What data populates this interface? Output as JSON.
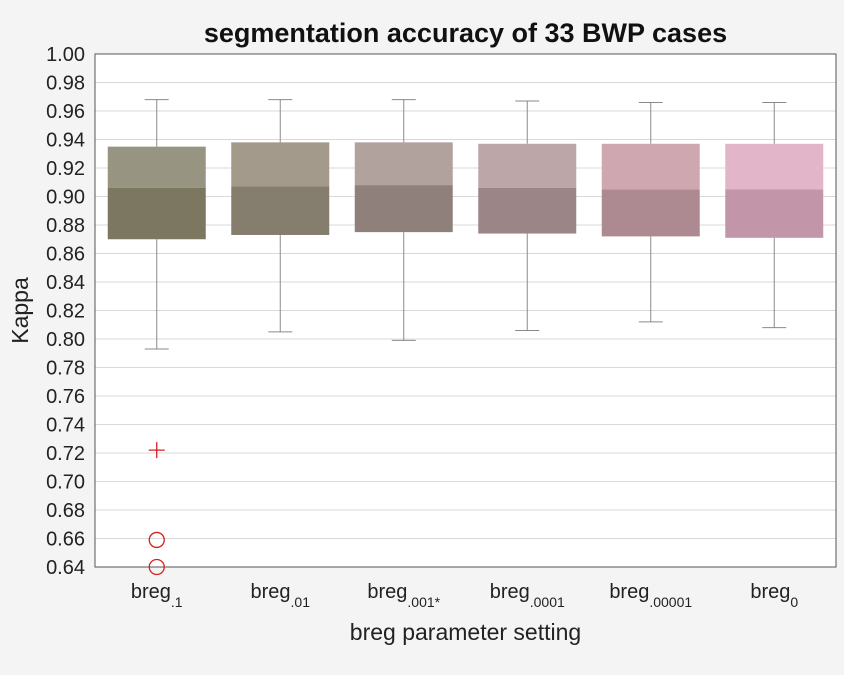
{
  "chart_data": {
    "type": "box",
    "title": "segmentation accuracy of 33 BWP cases",
    "xlabel": "breg parameter setting",
    "ylabel": "Kappa",
    "ylim": [
      0.64,
      1.0
    ],
    "yticks": [
      "0.64",
      "0.66",
      "0.68",
      "0.70",
      "0.72",
      "0.74",
      "0.76",
      "0.78",
      "0.80",
      "0.82",
      "0.84",
      "0.86",
      "0.88",
      "0.90",
      "0.92",
      "0.94",
      "0.96",
      "0.98",
      "1.00"
    ],
    "grid": true,
    "categories": [
      {
        "base": "breg",
        "sub": ".1"
      },
      {
        "base": "breg",
        "sub": ".01"
      },
      {
        "base": "breg",
        "sub": ".001*"
      },
      {
        "base": "breg",
        "sub": ".0001"
      },
      {
        "base": "breg",
        "sub": ".00001"
      },
      {
        "base": "breg",
        "sub": "0"
      }
    ],
    "series": [
      {
        "whisker_low": 0.793,
        "q1": 0.87,
        "median": 0.906,
        "q3": 0.935,
        "whisker_high": 0.968,
        "outliers": [
          {
            "value": 0.722,
            "marker": "plus"
          },
          {
            "value": 0.659,
            "marker": "circle"
          },
          {
            "value": 0.64,
            "marker": "circle"
          }
        ],
        "upper_color": "#979582",
        "lower_color": "#7b7761"
      },
      {
        "whisker_low": 0.805,
        "q1": 0.873,
        "median": 0.907,
        "q3": 0.938,
        "whisker_high": 0.968,
        "outliers": [],
        "upper_color": "#a49a8b",
        "lower_color": "#857d6e"
      },
      {
        "whisker_low": 0.799,
        "q1": 0.875,
        "median": 0.908,
        "q3": 0.938,
        "whisker_high": 0.968,
        "outliers": [],
        "upper_color": "#b1a29e",
        "lower_color": "#90807b"
      },
      {
        "whisker_low": 0.806,
        "q1": 0.874,
        "median": 0.906,
        "q3": 0.937,
        "whisker_high": 0.967,
        "outliers": [],
        "upper_color": "#bda6a7",
        "lower_color": "#9c8586"
      },
      {
        "whisker_low": 0.812,
        "q1": 0.872,
        "median": 0.905,
        "q3": 0.937,
        "whisker_high": 0.966,
        "outliers": [],
        "upper_color": "#cfa7b1",
        "lower_color": "#ad8a92"
      },
      {
        "whisker_low": 0.808,
        "q1": 0.871,
        "median": 0.905,
        "q3": 0.937,
        "whisker_high": 0.966,
        "outliers": [],
        "upper_color": "#e3b5c9",
        "lower_color": "#c395a9"
      }
    ],
    "colors": {
      "grid": "#d9d9d9",
      "axis": "#555555",
      "whisker": "#8a8a8a",
      "outlier": "#d22020",
      "plot_bg": "#ffffff",
      "page_bg": "#f4f4f4"
    }
  }
}
